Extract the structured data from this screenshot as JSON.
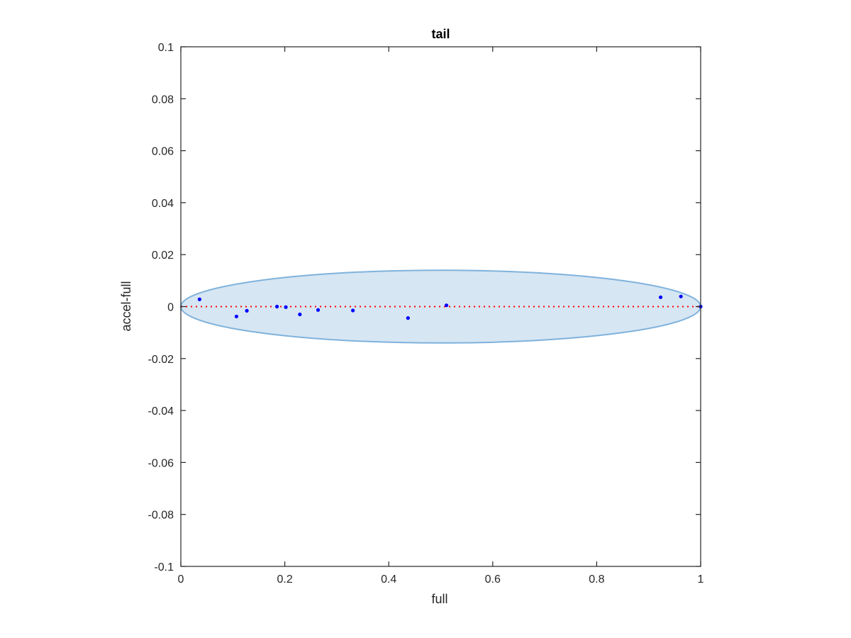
{
  "chart_data": {
    "type": "scatter",
    "title": "tail",
    "xlabel": "full",
    "ylabel": "accel-full",
    "xlim": [
      0,
      1
    ],
    "ylim": [
      -0.1,
      0.1
    ],
    "xticks": [
      0,
      0.2,
      0.4,
      0.6,
      0.8,
      1
    ],
    "xtick_labels": [
      "0",
      "0.2",
      "0.4",
      "0.6",
      "0.8",
      "1"
    ],
    "yticks": [
      -0.1,
      -0.08,
      -0.06,
      -0.04,
      -0.02,
      0,
      0.02,
      0.04,
      0.06,
      0.08,
      0.1
    ],
    "ytick_labels": [
      "-0.1",
      "-0.08",
      "-0.06",
      "-0.04",
      "-0.02",
      "0",
      "0.02",
      "0.04",
      "0.06",
      "0.08",
      "0.1"
    ],
    "grid": false,
    "series": [
      {
        "x": [
          0.036,
          0.107,
          0.127,
          0.185,
          0.202,
          0.229,
          0.264,
          0.331,
          0.437,
          0.511,
          0.923,
          0.962,
          1.0
        ],
        "y": [
          0.0028,
          -0.0038,
          -0.0016,
          0.0,
          -0.0002,
          -0.003,
          -0.0013,
          -0.0015,
          -0.0044,
          0.0005,
          0.0036,
          0.0039,
          0.0
        ],
        "color": "#0000ff"
      }
    ],
    "reference_line": {
      "y": 0,
      "x_range": [
        0,
        1
      ],
      "style": "dotted",
      "color": "#ff0000"
    },
    "ellipse": {
      "center": [
        0.5,
        0
      ],
      "half_width": 0.5,
      "half_height": 0.014,
      "fill": "#d6e6f3",
      "stroke": "#7fb2dc"
    }
  }
}
